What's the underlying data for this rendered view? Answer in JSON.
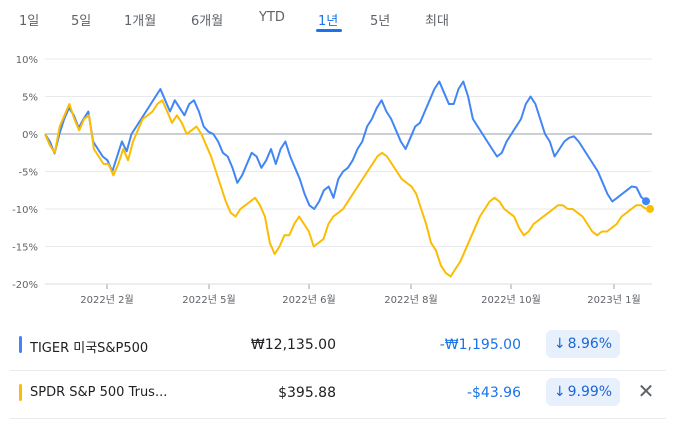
{
  "tabs": [
    {
      "label": "1일",
      "active": false
    },
    {
      "label": "5일",
      "active": false
    },
    {
      "label": "1개월",
      "active": false
    },
    {
      "label": "6개월",
      "active": false
    },
    {
      "label": "YTD",
      "active": false
    },
    {
      "label": "1년",
      "active": true
    },
    {
      "label": "5년",
      "active": false
    },
    {
      "label": "최대",
      "active": false
    }
  ],
  "chart_data": {
    "type": "line",
    "ylim": [
      -20,
      10
    ],
    "yticks": [
      "10%",
      "5%",
      "0%",
      "-5%",
      "-10%",
      "-15%",
      "-20%"
    ],
    "xticks": [
      "2022년 2월",
      "2022년 5월",
      "2022년 6월",
      "2022년 8월",
      "2022년 10월",
      "2023년 1월"
    ],
    "grid": true,
    "series": [
      {
        "name": "TIGER 미국S&P500",
        "color": "#4285f4",
        "values": [
          0,
          -1,
          -2.6,
          0,
          2,
          3.5,
          2.5,
          0.8,
          2,
          3,
          -1,
          -2,
          -3,
          -3.5,
          -5,
          -3,
          -1,
          -2.3,
          0,
          1,
          2,
          3,
          4,
          5,
          6,
          4.5,
          3,
          4.5,
          3.5,
          2.5,
          4,
          4.5,
          3,
          1,
          0.3,
          0,
          -1,
          -2.5,
          -3,
          -4.5,
          -6.5,
          -5.5,
          -4,
          -2.5,
          -3,
          -4.5,
          -3.5,
          -2,
          -4,
          -2,
          -1,
          -3,
          -4.5,
          -6,
          -8,
          -9.5,
          -10,
          -9,
          -7.5,
          -7,
          -8.5,
          -6,
          -5,
          -4.5,
          -3.5,
          -2,
          -1,
          1,
          2,
          3.5,
          4.5,
          3,
          2,
          0.5,
          -1,
          -2,
          -0.5,
          1,
          1.5,
          3,
          4.5,
          6,
          7,
          5.5,
          4,
          4,
          6,
          7,
          5,
          2,
          1,
          0,
          -1,
          -2,
          -3,
          -2.5,
          -1,
          0,
          1,
          2,
          4,
          5,
          4,
          2,
          0,
          -1,
          -3,
          -2,
          -1,
          -0.5,
          -0.3,
          -1,
          -2,
          -3,
          -4,
          -5,
          -6.5,
          -8,
          -9,
          -8.5,
          -8,
          -7.5,
          -7,
          -7.1,
          -8.4,
          -8.96
        ]
      },
      {
        "name": "SPDR S&P 500 Trust",
        "color": "#fbbc04",
        "values": [
          0,
          -1.5,
          -2.5,
          1,
          2.5,
          4,
          2,
          0.5,
          2,
          2.5,
          -2,
          -3,
          -4,
          -4,
          -5.5,
          -4,
          -2,
          -3.5,
          -1,
          0.5,
          2,
          2.5,
          3,
          4,
          4.5,
          3,
          1.5,
          2.5,
          1.5,
          0,
          0.5,
          1,
          0,
          -1.5,
          -3,
          -5,
          -7,
          -9,
          -10.5,
          -11,
          -10,
          -9.5,
          -9,
          -8.5,
          -9.5,
          -11,
          -14.5,
          -16,
          -15,
          -13.5,
          -13.5,
          -12,
          -11,
          -12,
          -13,
          -15,
          -14.5,
          -14,
          -12,
          -11,
          -10.5,
          -10,
          -9,
          -8,
          -7,
          -6,
          -5,
          -4,
          -3,
          -2.5,
          -3,
          -4,
          -5,
          -6,
          -6.5,
          -7,
          -8,
          -10,
          -12,
          -14.5,
          -15.5,
          -17.5,
          -18.5,
          -19,
          -18,
          -17,
          -15.5,
          -14,
          -12.5,
          -11,
          -10,
          -9,
          -8.5,
          -9,
          -10,
          -10.5,
          -11,
          -12.5,
          -13.5,
          -13,
          -12,
          -11.5,
          -11,
          -10.5,
          -10,
          -9.5,
          -9.5,
          -10,
          -10,
          -10.5,
          -11,
          -12,
          -13,
          -13.5,
          -13,
          -13,
          -12.5,
          -12,
          -11,
          -10.5,
          -10,
          -9.5,
          -9.5,
          -9.99
        ]
      }
    ]
  },
  "holdings": [
    {
      "name": "TIGER 미국S&P500",
      "color": "#4285f4",
      "price": "₩12,135.00",
      "change": "-₩1,195.00",
      "percent": "8.96%",
      "arrow": "↓",
      "closable": false
    },
    {
      "name": "SPDR S&P 500 Trus...",
      "color": "#fbbc04",
      "price": "$395.88",
      "change": "-$43.96",
      "percent": "9.99%",
      "arrow": "↓",
      "closable": true
    }
  ]
}
